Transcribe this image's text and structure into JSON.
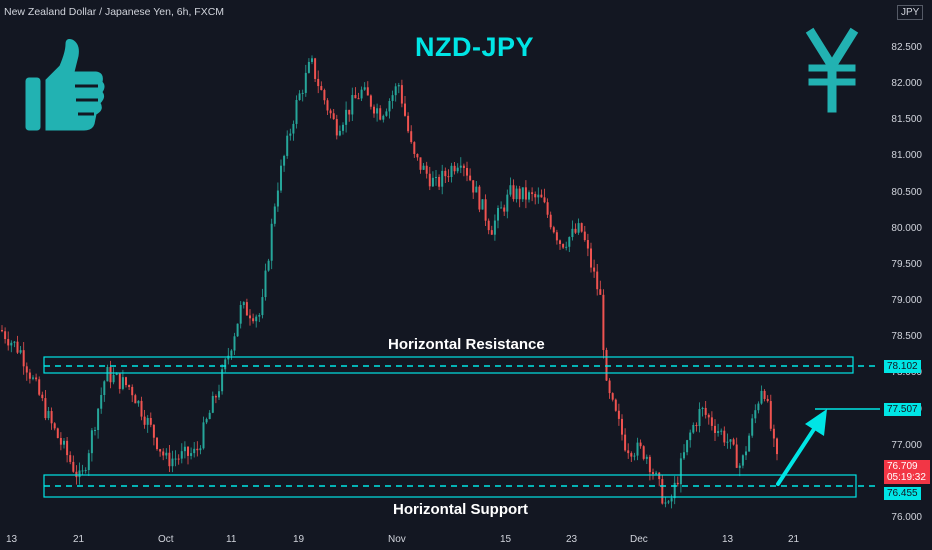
{
  "header": {
    "symbol_title": "New Zealand Dollar / Japanese Yen, 6h, FXCM",
    "currency": "JPY",
    "currency_top": "82"
  },
  "title": "NZD-JPY",
  "annotations": {
    "resistance_label": "Horizontal Resistance",
    "support_label": "Horizontal Support"
  },
  "price_tags": {
    "resistance": "78.102",
    "target": "77.507",
    "support": "76.455",
    "last_price": "76.709",
    "countdown": "05:19:32"
  },
  "icons": {
    "thumbs_up": "thumbs-up-icon",
    "yen": "yen-icon",
    "arrow": "up-arrow-icon"
  },
  "colors": {
    "up": "#26a69a",
    "down": "#ef5350",
    "accent": "#00e5e5",
    "background": "#131722"
  },
  "chart_data": {
    "type": "candlestick",
    "title": "NZD-JPY",
    "y_ticks": [
      "82.500",
      "82.000",
      "81.500",
      "81.000",
      "80.500",
      "80.000",
      "79.500",
      "79.000",
      "78.500",
      "78.000",
      "77.500",
      "77.000",
      "76.500",
      "76.000"
    ],
    "x_ticks": [
      "13",
      "21",
      "Oct",
      "11",
      "19",
      "Nov",
      "15",
      "23",
      "Dec",
      "13",
      "21"
    ],
    "ylim": [
      75.9,
      82.9
    ],
    "path_key_prices": [
      [
        0,
        78.6
      ],
      [
        20,
        78.3
      ],
      [
        50,
        77.3
      ],
      [
        80,
        76.5
      ],
      [
        105,
        78.0
      ],
      [
        130,
        77.8
      ],
      [
        165,
        76.8
      ],
      [
        195,
        76.9
      ],
      [
        220,
        77.9
      ],
      [
        240,
        78.9
      ],
      [
        260,
        78.8
      ],
      [
        275,
        80.5
      ],
      [
        295,
        81.7
      ],
      [
        310,
        82.3
      ],
      [
        320,
        81.9
      ],
      [
        335,
        81.4
      ],
      [
        360,
        81.9
      ],
      [
        380,
        81.6
      ],
      [
        398,
        82.0
      ],
      [
        412,
        81.0
      ],
      [
        435,
        80.6
      ],
      [
        460,
        81.0
      ],
      [
        490,
        80.0
      ],
      [
        510,
        80.5
      ],
      [
        540,
        80.4
      ],
      [
        560,
        79.8
      ],
      [
        580,
        80.0
      ],
      [
        600,
        79.0
      ],
      [
        605,
        77.8
      ],
      [
        625,
        77.0
      ],
      [
        645,
        76.9
      ],
      [
        667,
        76.1
      ],
      [
        690,
        77.2
      ],
      [
        700,
        77.5
      ],
      [
        725,
        77.1
      ],
      [
        740,
        76.7
      ],
      [
        762,
        77.9
      ],
      [
        775,
        76.8
      ],
      [
        780,
        76.7
      ]
    ],
    "levels": {
      "resistance": 78.102,
      "support": 76.455,
      "target": 77.507,
      "last": 76.709
    },
    "grid": false
  }
}
